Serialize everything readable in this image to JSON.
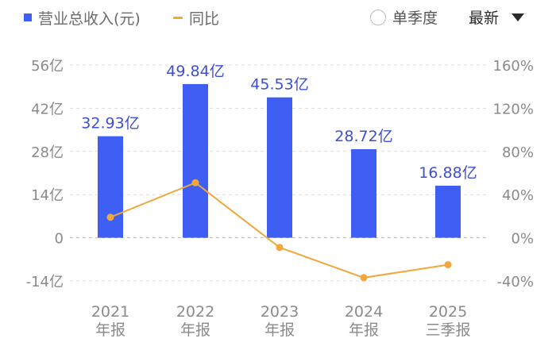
{
  "legend": {
    "revenue_label": "营业总收入(元)",
    "yoy_label": "同比"
  },
  "controls": {
    "single_quarter_label": "单季度",
    "sort_label": "最新"
  },
  "colors": {
    "bar": "#3f5ef4",
    "line": "#f2a73b",
    "bar_label": "#3f4fd0",
    "axis_text": "#8a8a8a"
  },
  "chart_data": {
    "type": "bar",
    "categories": [
      [
        "2021",
        "年报"
      ],
      [
        "2022",
        "年报"
      ],
      [
        "2023",
        "年报"
      ],
      [
        "2024",
        "年报"
      ],
      [
        "2025",
        "三季报"
      ]
    ],
    "series": [
      {
        "name": "营业总收入(元)",
        "type": "bar",
        "axis": "left",
        "values": [
          32.93,
          49.84,
          45.53,
          28.72,
          16.88
        ],
        "labels": [
          "32.93亿",
          "49.84亿",
          "45.53亿",
          "28.72亿",
          "16.88亿"
        ]
      },
      {
        "name": "同比",
        "type": "line",
        "axis": "right",
        "values": [
          19,
          51,
          -9,
          -37,
          -25
        ]
      }
    ],
    "y_left": {
      "ticks": [
        56,
        42,
        28,
        14,
        0,
        -14
      ],
      "tick_labels": [
        "56亿",
        "42亿",
        "28亿",
        "14亿",
        "0",
        "-14亿"
      ],
      "range": [
        -14,
        56
      ]
    },
    "y_right": {
      "ticks": [
        160,
        120,
        80,
        40,
        0,
        -40
      ],
      "tick_labels": [
        "160%",
        "120%",
        "80%",
        "40%",
        "0%",
        "-40%"
      ],
      "range": [
        -40,
        160
      ]
    },
    "grid": "dashed",
    "legend_position": "top-left"
  }
}
